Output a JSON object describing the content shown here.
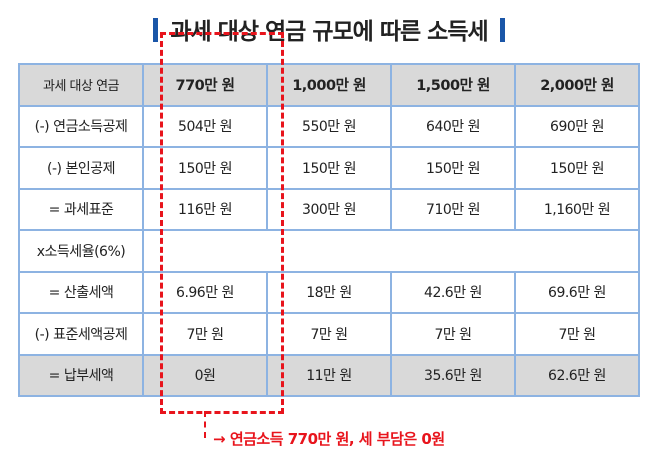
{
  "title": "과세 대상 연금 규모에 따른 소득세",
  "colors": {
    "accent_bar": "#1a56a8",
    "highlight": "#e8141c",
    "border": "#8db3e2",
    "header_bg": "#d9d9d9"
  },
  "table": {
    "headers": [
      "과세 대상 연금",
      "770만 원",
      "1,000만 원",
      "1,500만 원",
      "2,000만 원"
    ],
    "rows": [
      [
        "(-) 연금소득공제",
        "504만 원",
        "550만 원",
        "640만 원",
        "690만 원"
      ],
      [
        "(-) 본인공제",
        "150만 원",
        "150만 원",
        "150만 원",
        "150만 원"
      ],
      [
        "= 과세표준",
        "116만 원",
        "300만 원",
        "710만 원",
        "1,160만 원"
      ],
      [
        "x소득세율(6%)"
      ],
      [
        "= 산출세액",
        "6.96만 원",
        "18만 원",
        "42.6만 원",
        "69.6만 원"
      ],
      [
        "(-) 표준세액공제",
        "7만 원",
        "7만 원",
        "7만 원",
        "7만 원"
      ],
      [
        "= 납부세액",
        "0원",
        "11만 원",
        "35.6만 원",
        "62.6만 원"
      ]
    ]
  },
  "annotation": {
    "arrow": "→",
    "text": "연금소득 770만 원, 세 부담은 0원"
  }
}
